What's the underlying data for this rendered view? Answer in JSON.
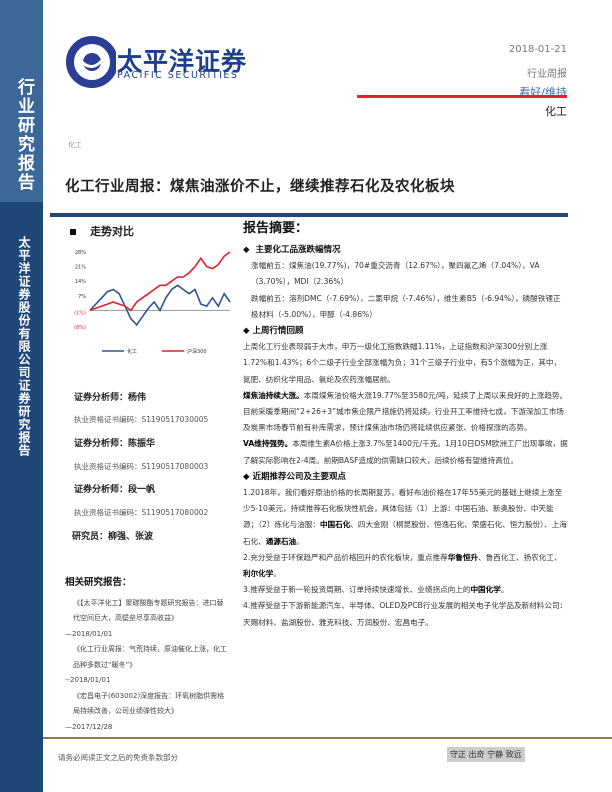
{
  "sidebar": {
    "title": "行业研究报告",
    "company": "太平洋证券股份有限公司证券研究报告"
  },
  "logo": {
    "name_cn": "太平洋证券",
    "name_en": "PACIFIC SECURITIES"
  },
  "meta": {
    "date": "2018-01-21",
    "report_type": "行业周报",
    "rating": "看好/维持",
    "sector": "化工"
  },
  "category": "化工",
  "title": "化工行业周报：煤焦油涨价不止，继续推荐石化及农化板块",
  "trend": {
    "heading": "走势对比"
  },
  "chart_data": {
    "type": "line",
    "ylim": [
      -8,
      28
    ],
    "yticks": [
      "28%",
      "21%",
      "14%",
      "7%",
      "(1%)",
      "(8%)"
    ],
    "series": [
      {
        "name": "化工",
        "color": "#2c5494",
        "values": [
          0,
          3,
          6,
          9,
          10,
          8,
          2,
          -4,
          -7,
          -3,
          1,
          4,
          0,
          6,
          10,
          12,
          10,
          8,
          10,
          3,
          2,
          6,
          2,
          8,
          4
        ]
      },
      {
        "name": "沪深300",
        "color": "#e3202c",
        "values": [
          0,
          1,
          2,
          3,
          4,
          3,
          2,
          0,
          4,
          6,
          8,
          10,
          12,
          12,
          14,
          16,
          16,
          18,
          21,
          25,
          21,
          20,
          22,
          26,
          28
        ]
      }
    ]
  },
  "analysts": [
    {
      "label": "证券分析师：杨伟",
      "license": "执业资格证书编码：S1190517030005"
    },
    {
      "label": "证券分析师：陈振华",
      "license": "执业资格证书编码：S1190517080003"
    },
    {
      "label": "证券分析师：段一帆",
      "license": "执业资格证书编码：S1190517080002"
    }
  ],
  "researchers": "研究员：柳强、张波",
  "related": {
    "heading": "相关研究报告：",
    "items": [
      {
        "title": "《【太平洋化工】聚碳酸酯专题研究报告：进口替代空间巨大，高壁垒尽享高收益》",
        "date": "—2018/01/01"
      },
      {
        "title": "《化工行业周报：气荒持续，原油催化上涨，化工品种多数过“暖冬”》",
        "date": "--2018/01/01"
      },
      {
        "title": "《宏昌电子(603002)深度报告：环氧树脂供需格局持续改善，公司业绩弹性较大》",
        "date": "—2017/12/28"
      }
    ]
  },
  "summary": {
    "heading": "报告摘要：",
    "s1": {
      "heading": "主要化工品涨跌幅情况",
      "up": "涨幅前五：煤焦油(19.77%)，70#重交沥青（12.67%），聚四氟乙烯（7.04%），VA（3.70%），MDI（2.36%）",
      "down": "跌幅前五：溶剂DMC（-7.69%），二氯甲烷（-7.46%），维生素B5（-6.94%），磷酸铁锂正极材料（-5.00%），甲醇（-4.86%）"
    },
    "s2": {
      "heading": "上周行情回顾",
      "p1": "上周化工行业表现弱于大市，申万一级化工指数跌幅1.11%，上证指数和沪深300分别上涨1.72%和1.43%；6个二级子行业全部涨幅为负；31个三级子行业中，有5个涨幅为正，其中，氮肥、纺织化学用品、氨纶及农药涨幅居前。",
      "p2_bold": "煤焦油持续大涨。",
      "p2": "本周煤焦油价格大涨19.77%至3580元/吨，延续了上周以来良好的上涨趋势。目前采暖季期间“2+26+3”城市焦企限产措施仍将延续，行业开工率维持七成，下游深加工市场及炭黑市场春节前有补库需求，预计煤焦油市场仍将延续供应紧张、价格探涨的态势。",
      "p3_bold": "VA维持强势。",
      "p3": "本周维生素A价格上涨3.7%至1400元/千克。1月10日DSM欧洲工厂出现事故，据了解实际影响在2-4周。前期BASF造成的供需缺口较大，后续价格有望维持高位。"
    },
    "s3": {
      "heading": "近期推荐公司及主要观点",
      "p1a": "1.2018年，我们看好原油价格的长周期复苏，看好布油价格在17年55美元的基础上继续上涨至少5-10美元，持续推荐石化板块性机会，具体包括（1）上游：中国石油、新奥股份、中天能源；（2）炼化与油服：",
      "p1b": "中国石化",
      "p1c": "、四大金刚（桐昆股份、恒逸石化、荣盛石化、恒力股份）、上海石化、",
      "p1d": "通源石油",
      "p1e": "。",
      "p2a": "2.充分受益于环保趋严和产品价格回升的农化板块，重点推荐",
      "p2b": "华鲁恒升",
      "p2c": "、鲁西化工、扬农化工、",
      "p2d": "利尔化学",
      "p2e": "。",
      "p3a": "3.推荐受益于新一轮投资周期、订单持续快速增长、业绩拐点向上的",
      "p3b": "中国化学",
      "p3c": "。",
      "p4": "4.推荐受益于下游新能源汽车、半导体、OLED及PCB行业发展的相关电子化学品及新材料公司：天赐材料、盐湖股份、雅克科技、万润股份、宏昌电子。"
    }
  },
  "footer": {
    "disclaimer": "请务必阅读正文之后的免责条款部分",
    "motto": "守正 出奇 宁静 致远"
  }
}
